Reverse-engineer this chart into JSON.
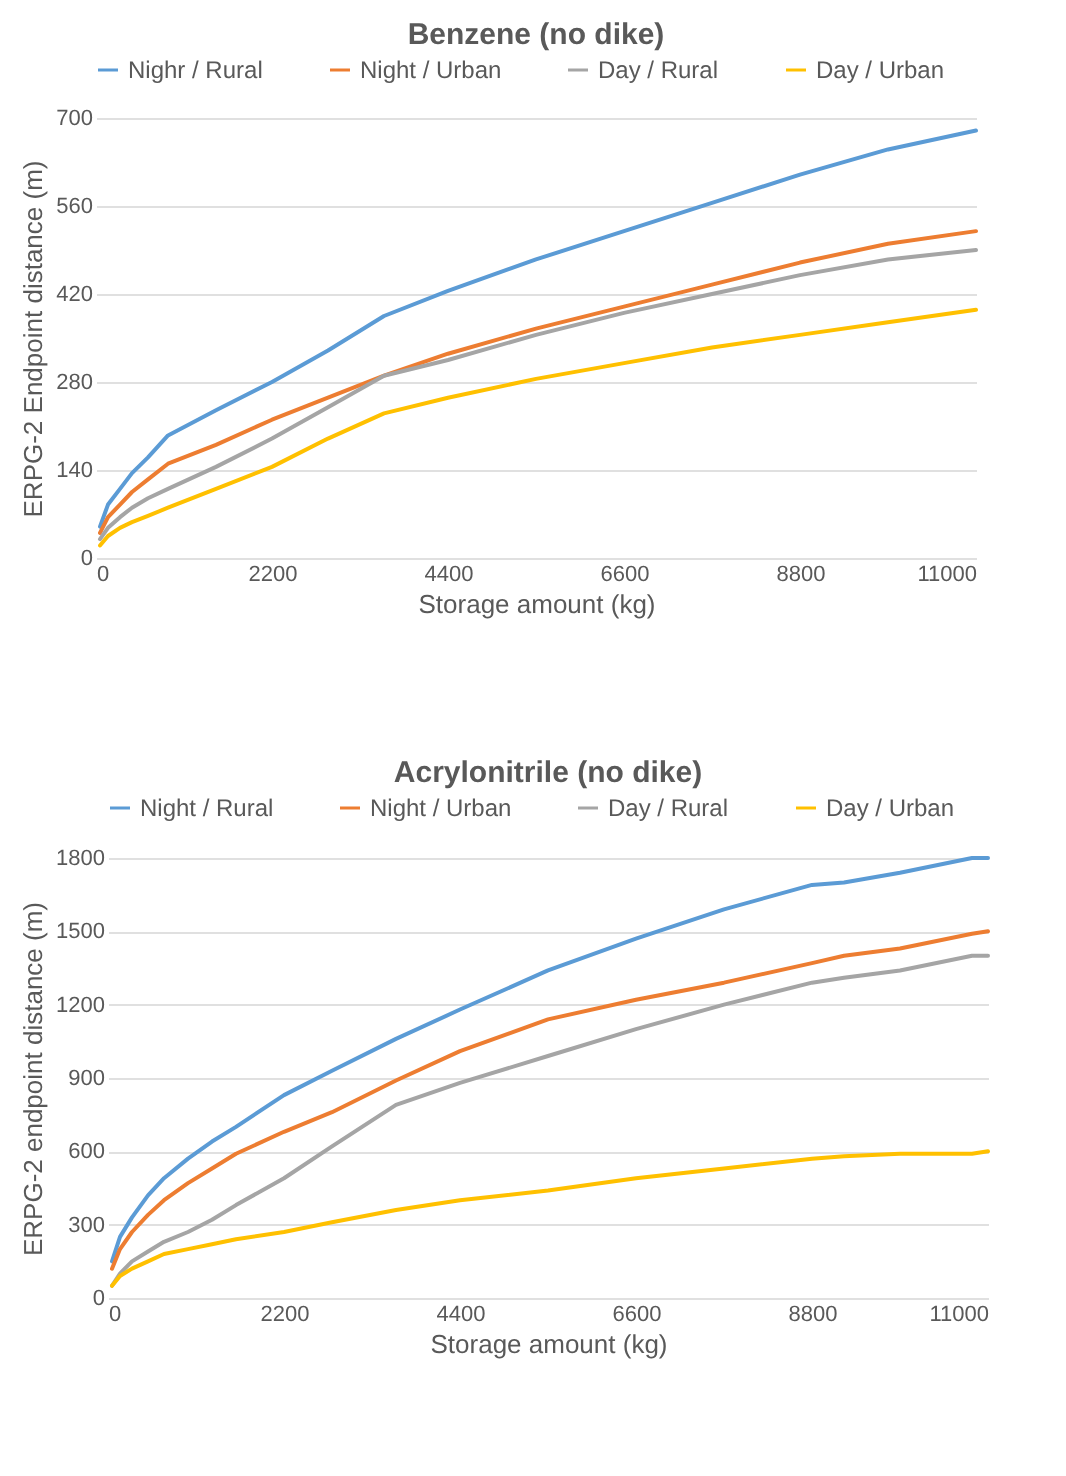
{
  "chart_data": [
    {
      "type": "line",
      "title": "Benzene (no dike)",
      "xlabel": "Storage amount (kg)",
      "ylabel": "ERPG-2 Endpoint distance (m)",
      "x": [
        50,
        150,
        300,
        450,
        650,
        900,
        1500,
        2200,
        2900,
        3600,
        4400,
        5500,
        6600,
        7700,
        8800,
        9900,
        11000
      ],
      "series": [
        {
          "name": "Nighr / Rural",
          "color": "#5b9bd5",
          "values": [
            50,
            85,
            110,
            135,
            160,
            195,
            235,
            280,
            330,
            385,
            425,
            475,
            520,
            565,
            610,
            650,
            680
          ]
        },
        {
          "name": "Night / Urban",
          "color": "#ed7d31",
          "values": [
            40,
            65,
            85,
            105,
            125,
            150,
            180,
            220,
            255,
            290,
            325,
            365,
            400,
            435,
            470,
            500,
            520
          ]
        },
        {
          "name": "Day / Rural",
          "color": "#a5a5a5",
          "values": [
            30,
            48,
            65,
            80,
            95,
            110,
            145,
            190,
            240,
            290,
            315,
            355,
            390,
            420,
            450,
            475,
            490
          ]
        },
        {
          "name": "Day / Urban",
          "color": "#ffc000",
          "values": [
            20,
            35,
            48,
            57,
            67,
            80,
            110,
            145,
            190,
            230,
            255,
            285,
            310,
            335,
            355,
            375,
            395
          ]
        }
      ],
      "xlim": [
        0,
        11000
      ],
      "xticks": [
        0,
        2200,
        4400,
        6600,
        8800,
        11000
      ],
      "ylim": [
        0,
        700
      ],
      "yticks": [
        0,
        140,
        280,
        420,
        560,
        700
      ],
      "grid": "y",
      "legend": "top",
      "marker": "none",
      "line_style": "solid"
    },
    {
      "type": "line",
      "title": "Acrylonitrile (no dike)",
      "xlabel": "Storage amount (kg)",
      "ylabel": "ERPG-2 endpoint distance (m)",
      "x": [
        50,
        150,
        300,
        500,
        700,
        1000,
        1300,
        1600,
        2200,
        2800,
        3600,
        4400,
        5500,
        6600,
        7700,
        8800,
        9200,
        9900,
        10800,
        11000
      ],
      "series": [
        {
          "name": "Night / Rural",
          "color": "#5b9bd5",
          "values": [
            150,
            250,
            330,
            420,
            490,
            570,
            640,
            700,
            830,
            930,
            1060,
            1180,
            1340,
            1470,
            1590,
            1690,
            1700,
            1740,
            1800,
            1800
          ]
        },
        {
          "name": "Night / Urban",
          "color": "#ed7d31",
          "values": [
            120,
            200,
            270,
            340,
            400,
            470,
            530,
            590,
            680,
            760,
            890,
            1010,
            1140,
            1220,
            1290,
            1370,
            1400,
            1430,
            1490,
            1500
          ]
        },
        {
          "name": "Day / Rural",
          "color": "#a5a5a5",
          "values": [
            50,
            100,
            150,
            190,
            230,
            270,
            320,
            380,
            490,
            620,
            790,
            880,
            990,
            1100,
            1200,
            1290,
            1310,
            1340,
            1400,
            1400
          ]
        },
        {
          "name": "Day / Urban",
          "color": "#ffc000",
          "values": [
            50,
            90,
            120,
            150,
            180,
            200,
            220,
            240,
            270,
            310,
            360,
            400,
            440,
            490,
            530,
            570,
            580,
            590,
            590,
            600
          ]
        }
      ],
      "xlim": [
        0,
        11000
      ],
      "xticks": [
        0,
        2200,
        4400,
        6600,
        8800,
        11000
      ],
      "ylim": [
        0,
        1800
      ],
      "yticks": [
        0,
        300,
        600,
        900,
        1200,
        1500,
        1800
      ],
      "grid": "y",
      "legend": "top",
      "marker": "none",
      "line_style": "solid"
    }
  ]
}
